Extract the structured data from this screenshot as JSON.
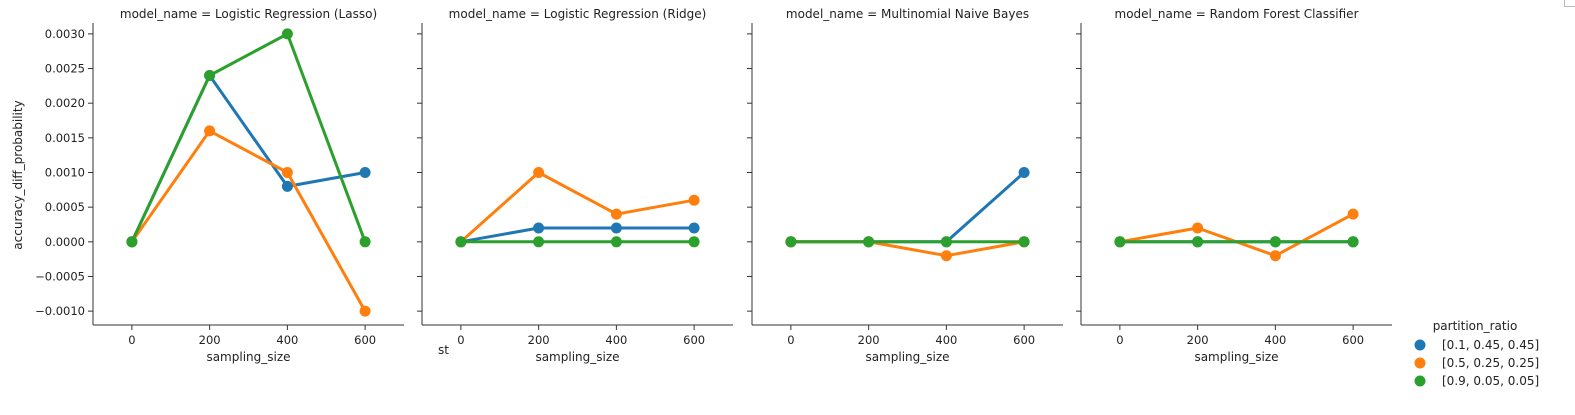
{
  "chart_data": {
    "type": "line",
    "facet_variable": "model_name",
    "facet_prefix": "model_name = ",
    "panels": [
      {
        "title": "model_name = Logistic Regression (Lasso)",
        "model_name": "Logistic Regression (Lasso)",
        "series": [
          {
            "name": "[0.1, 0.45, 0.45]",
            "values": [
              0.0,
              0.0024,
              0.0008,
              0.001
            ]
          },
          {
            "name": "[0.5, 0.25, 0.25]",
            "values": [
              0.0,
              0.0016,
              0.001,
              -0.001
            ]
          },
          {
            "name": "[0.9, 0.05, 0.05]",
            "values": [
              0.0,
              0.0024,
              0.003,
              0.0
            ]
          }
        ]
      },
      {
        "title": "model_name = Logistic Regression (Ridge)",
        "model_name": "Logistic Regression (Ridge)",
        "series": [
          {
            "name": "[0.1, 0.45, 0.45]",
            "values": [
              0.0,
              0.0002,
              0.0002,
              0.0002
            ]
          },
          {
            "name": "[0.5, 0.25, 0.25]",
            "values": [
              0.0,
              0.001,
              0.0004,
              0.0006
            ]
          },
          {
            "name": "[0.9, 0.05, 0.05]",
            "values": [
              0.0,
              0.0,
              0.0,
              0.0
            ]
          }
        ]
      },
      {
        "title": "model_name = Multinomial Naive Bayes",
        "model_name": "Multinomial Naive Bayes",
        "series": [
          {
            "name": "[0.1, 0.45, 0.45]",
            "values": [
              0.0,
              0.0,
              0.0,
              0.001
            ]
          },
          {
            "name": "[0.5, 0.25, 0.25]",
            "values": [
              0.0,
              0.0,
              -0.0002,
              0.0
            ]
          },
          {
            "name": "[0.9, 0.05, 0.05]",
            "values": [
              0.0,
              0.0,
              0.0,
              0.0
            ]
          }
        ]
      },
      {
        "title": "model_name = Random Forest Classifier",
        "model_name": "Random Forest Classifier",
        "series": [
          {
            "name": "[0.1, 0.45, 0.45]",
            "values": [
              0.0,
              0.0,
              0.0,
              0.0
            ]
          },
          {
            "name": "[0.5, 0.25, 0.25]",
            "values": [
              0.0,
              0.0002,
              -0.0002,
              0.0004
            ]
          },
          {
            "name": "[0.9, 0.05, 0.05]",
            "values": [
              0.0,
              0.0,
              0.0,
              0.0
            ]
          }
        ]
      }
    ],
    "x": [
      0,
      200,
      400,
      600
    ],
    "xticks": [
      "0",
      "200",
      "400",
      "600"
    ],
    "xlabel": "sampling_size",
    "ylabel": "accuracy_diff_probability",
    "ylim": [
      -0.0012,
      0.0032
    ],
    "yticks": [
      -0.001,
      -0.0005,
      0.0,
      0.0005,
      0.001,
      0.0015,
      0.002,
      0.0025,
      0.003
    ],
    "ytick_labels": [
      "−0.0010",
      "−0.0005",
      "0.0000",
      "0.0005",
      "0.0010",
      "0.0015",
      "0.0020",
      "0.0025",
      "0.0030"
    ],
    "sharey": true,
    "grid": false,
    "legend": {
      "title": "partition_ratio",
      "placement": "right",
      "entries": [
        {
          "label": "[0.1, 0.45, 0.45]",
          "color": "#1f77b4"
        },
        {
          "label": "[0.5, 0.25, 0.25]",
          "color": "#ff7f0e"
        },
        {
          "label": "[0.9, 0.05, 0.05]",
          "color": "#2ca02c"
        }
      ]
    },
    "stray_text": "st"
  }
}
